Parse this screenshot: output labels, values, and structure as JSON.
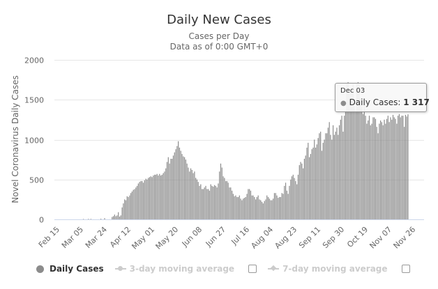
{
  "chart_data": {
    "type": "bar",
    "title": "Daily New Cases",
    "subtitle": [
      "Cases per Day",
      "Data as of 0:00 GMT+0"
    ],
    "ylabel": "Novel Coronavirus Daily Cases",
    "xlabel": "",
    "ylim": [
      0,
      2000
    ],
    "yticks": [
      "0",
      "500",
      "1000",
      "1500",
      "2000"
    ],
    "ytick_values": [
      0,
      500,
      1000,
      1500,
      2000
    ],
    "grid": true,
    "x_start": "Feb 15",
    "x_end": "Dec 03",
    "xtick_labels": [
      "Feb 15",
      "Mar 05",
      "Mar 24",
      "Apr 12",
      "May 01",
      "May 20",
      "Jun 08",
      "Jun 27",
      "Jul 16",
      "Aug 04",
      "Aug 23",
      "Sep 11",
      "Sep 30",
      "Oct 19",
      "Nov 07",
      "Nov 26"
    ],
    "xtick_interval_days": 19,
    "bar_color": "#8c8c8c",
    "series": [
      {
        "name": "Daily Cases",
        "values": [
          0,
          0,
          0,
          0,
          0,
          0,
          0,
          0,
          0,
          0,
          0,
          0,
          0,
          0,
          0,
          0,
          0,
          0,
          0,
          0,
          0,
          5,
          0,
          0,
          0,
          6,
          0,
          6,
          0,
          0,
          0,
          0,
          0,
          0,
          0,
          8,
          0,
          0,
          15,
          0,
          0,
          0,
          0,
          0,
          30,
          40,
          60,
          40,
          50,
          90,
          35,
          50,
          150,
          200,
          250,
          240,
          290,
          280,
          300,
          330,
          350,
          370,
          380,
          400,
          420,
          450,
          470,
          480,
          480,
          460,
          490,
          510,
          500,
          520,
          530,
          540,
          530,
          550,
          560,
          560,
          570,
          550,
          570,
          550,
          560,
          580,
          600,
          640,
          720,
          780,
          700,
          760,
          760,
          800,
          840,
          880,
          920,
          980,
          900,
          860,
          820,
          790,
          780,
          750,
          700,
          650,
          600,
          640,
          620,
          580,
          600,
          520,
          500,
          470,
          420,
          440,
          380,
          380,
          400,
          420,
          380,
          380,
          360,
          440,
          420,
          410,
          430,
          420,
          400,
          450,
          600,
          700,
          650,
          540,
          520,
          480,
          480,
          460,
          400,
          400,
          360,
          320,
          290,
          300,
          280,
          280,
          300,
          260,
          240,
          260,
          270,
          280,
          320,
          380,
          380,
          360,
          300,
          300,
          280,
          250,
          280,
          300,
          250,
          240,
          220,
          200,
          230,
          250,
          300,
          280,
          260,
          240,
          240,
          260,
          330,
          330,
          300,
          270,
          280,
          280,
          330,
          320,
          420,
          460,
          360,
          320,
          420,
          500,
          540,
          560,
          520,
          480,
          440,
          560,
          680,
          720,
          700,
          640,
          760,
          800,
          900,
          960,
          780,
          820,
          880,
          900,
          1000,
          900,
          940,
          1020,
          1080,
          1100,
          860,
          960,
          1000,
          1080,
          1080,
          1150,
          1220,
          1060,
          1000,
          1180,
          1060,
          1100,
          1150,
          1060,
          1180,
          1250,
          1300,
          1100,
          1300,
          1360,
          1700,
          1720,
          1620,
          1580,
          1640,
          1700,
          1420,
          1350,
          1700,
          1720,
          1700,
          1520,
          1420,
          1320,
          1500,
          1300,
          1200,
          1240,
          1300,
          1180,
          1200,
          1280,
          1280,
          1260,
          1160,
          1080,
          1200,
          1240,
          1220,
          1180,
          1250,
          1200,
          1260,
          1300,
          1220,
          1280,
          1250,
          1310,
          1280,
          1260,
          1200,
          1300,
          1320,
          1280,
          1300,
          1300,
          1160,
          1310,
          1290,
          1317
        ]
      }
    ],
    "tooltip": {
      "date": "Dec 03",
      "series": "Daily Cases",
      "value_text": "1 317",
      "value": 1317
    }
  },
  "legend": {
    "items": [
      {
        "label": "Daily Cases",
        "active": true
      },
      {
        "label": "3-day moving average",
        "active": false
      },
      {
        "label": "7-day moving average",
        "active": false
      }
    ]
  }
}
